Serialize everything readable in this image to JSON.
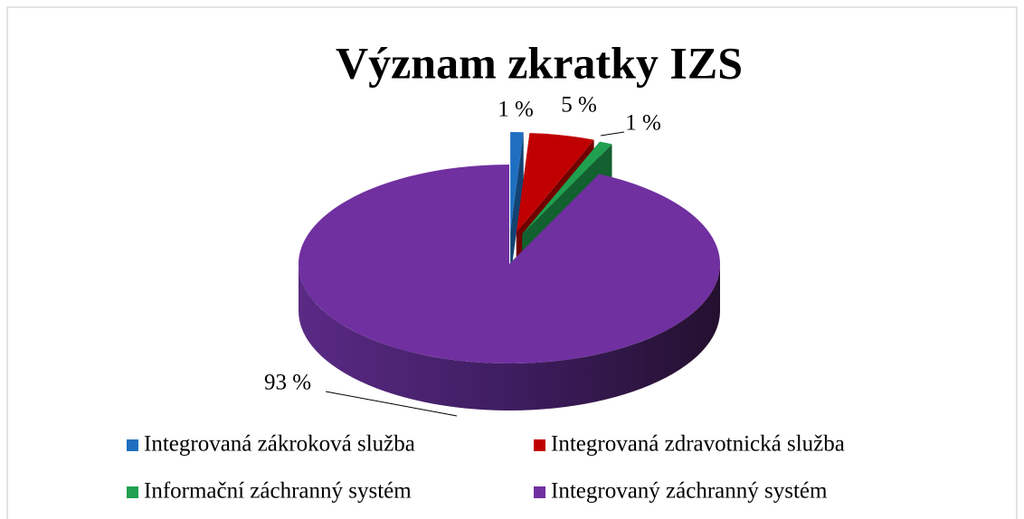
{
  "chart_data": {
    "type": "pie",
    "title": "Význam zkratky IZS",
    "categories": [
      "Integrovaná zákroková služba",
      "Integrovaná zdravotnická služba",
      "Informační záchranný systém",
      "Integrovaný záchranný systém"
    ],
    "values": [
      1,
      5,
      1,
      93
    ],
    "value_labels": [
      "1 %",
      "5 %",
      "1 %",
      "93 %"
    ],
    "colors": [
      "#1f6fc0",
      "#c00000",
      "#20a050",
      "#7030a0"
    ]
  }
}
